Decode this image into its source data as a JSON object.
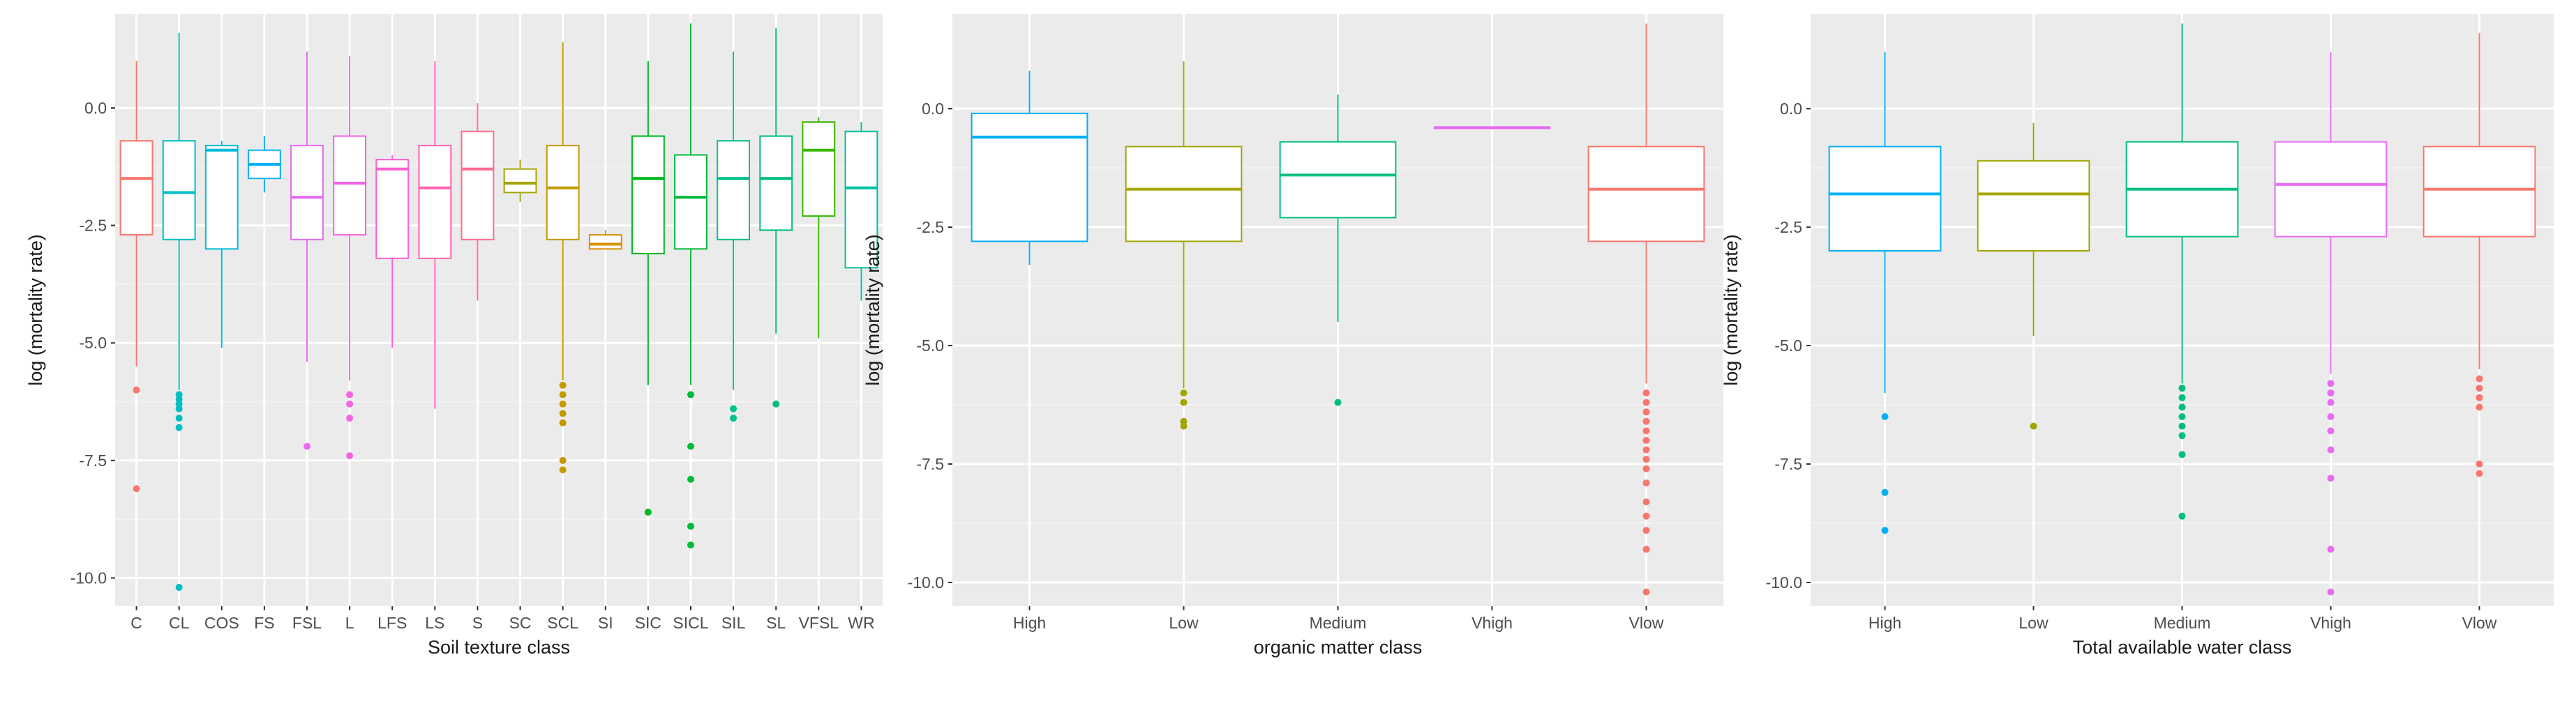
{
  "colors": {
    "panel_bg": "#EBEBEB",
    "grid_major": "#FFFFFF",
    "grid_minor": "#F4F4F4",
    "tick_text": "#4D4D4D",
    "axis_title": "#1A1A1A"
  },
  "chart_data": [
    {
      "type": "boxplot",
      "xlabel": "Soil texture class",
      "ylabel": "log (mortality rate)",
      "ylim": [
        -10.6,
        2.0
      ],
      "yticks": [
        0.0,
        -2.5,
        -5.0,
        -7.5,
        -10.0
      ],
      "ytick_labels": [
        "0.0",
        "-2.5",
        "-5.0",
        "-7.5",
        "-10.0"
      ],
      "grid": true,
      "legend": "none",
      "categories": [
        "C",
        "CL",
        "COS",
        "FS",
        "FSL",
        "L",
        "LFS",
        "LS",
        "S",
        "SC",
        "SCL",
        "SI",
        "SIC",
        "SICL",
        "SIL",
        "SL",
        "VFSL",
        "WR"
      ],
      "colors": [
        "#F8766D",
        "#00BFC4",
        "#00BCD8",
        "#00B0F6",
        "#E76BF3",
        "#F564E3",
        "#FD61D1",
        "#FF64B0",
        "#FF6C91",
        "#A3A500",
        "#C49A00",
        "#D89000",
        "#00B81F",
        "#00BA38",
        "#00C08B",
        "#00BF7D",
        "#39B600",
        "#00C19F"
      ],
      "boxes": [
        {
          "whisker_low": -5.5,
          "q1": -2.7,
          "median": -1.5,
          "q3": -0.7,
          "whisker_high": 1.0,
          "outliers": [
            -6.0,
            -8.1
          ]
        },
        {
          "whisker_low": -6.0,
          "q1": -2.8,
          "median": -1.8,
          "q3": -0.7,
          "whisker_high": 1.6,
          "outliers": [
            -6.1,
            -6.2,
            -6.3,
            -6.4,
            -6.6,
            -6.8,
            -10.2
          ]
        },
        {
          "whisker_low": -5.1,
          "q1": -3.0,
          "median": -0.9,
          "q3": -0.8,
          "whisker_high": -0.7,
          "outliers": []
        },
        {
          "whisker_low": -1.8,
          "q1": -1.5,
          "median": -1.2,
          "q3": -0.9,
          "whisker_high": -0.6,
          "outliers": []
        },
        {
          "whisker_low": -5.4,
          "q1": -2.8,
          "median": -1.9,
          "q3": -0.8,
          "whisker_high": 1.2,
          "outliers": [
            -7.2
          ]
        },
        {
          "whisker_low": -5.8,
          "q1": -2.7,
          "median": -1.6,
          "q3": -0.6,
          "whisker_high": 1.1,
          "outliers": [
            -6.1,
            -6.3,
            -6.6,
            -7.4
          ]
        },
        {
          "whisker_low": -5.1,
          "q1": -3.2,
          "median": -1.3,
          "q3": -1.1,
          "whisker_high": -1.0,
          "outliers": []
        },
        {
          "whisker_low": -6.4,
          "q1": -3.2,
          "median": -1.7,
          "q3": -0.8,
          "whisker_high": 1.0,
          "outliers": []
        },
        {
          "whisker_low": -4.1,
          "q1": -2.8,
          "median": -1.3,
          "q3": -0.5,
          "whisker_high": 0.1,
          "outliers": []
        },
        {
          "whisker_low": -2.0,
          "q1": -1.8,
          "median": -1.6,
          "q3": -1.3,
          "whisker_high": -1.1,
          "outliers": []
        },
        {
          "whisker_low": -5.8,
          "q1": -2.8,
          "median": -1.7,
          "q3": -0.8,
          "whisker_high": 1.4,
          "outliers": [
            -5.9,
            -6.1,
            -6.3,
            -6.5,
            -6.7,
            -7.5,
            -7.7
          ]
        },
        {
          "whisker_low": -3.0,
          "q1": -3.0,
          "median": -2.9,
          "q3": -2.7,
          "whisker_high": -2.6,
          "outliers": []
        },
        {
          "whisker_low": -5.9,
          "q1": -3.1,
          "median": -1.5,
          "q3": -0.6,
          "whisker_high": 1.0,
          "outliers": [
            -8.6
          ]
        },
        {
          "whisker_low": -5.9,
          "q1": -3.0,
          "median": -1.9,
          "q3": -1.0,
          "whisker_high": 1.8,
          "outliers": [
            -6.1,
            -7.2,
            -7.9,
            -8.9,
            -9.3
          ]
        },
        {
          "whisker_low": -6.0,
          "q1": -2.8,
          "median": -1.5,
          "q3": -0.7,
          "whisker_high": 1.2,
          "outliers": [
            -6.4,
            -6.6
          ]
        },
        {
          "whisker_low": -4.8,
          "q1": -2.6,
          "median": -1.5,
          "q3": -0.6,
          "whisker_high": 1.7,
          "outliers": [
            -6.3
          ]
        },
        {
          "whisker_low": -4.9,
          "q1": -2.3,
          "median": -0.9,
          "q3": -0.3,
          "whisker_high": -0.2,
          "outliers": []
        },
        {
          "whisker_low": -4.1,
          "q1": -3.4,
          "median": -1.7,
          "q3": -0.5,
          "whisker_high": -0.3,
          "outliers": []
        }
      ]
    },
    {
      "type": "boxplot",
      "xlabel": "organic matter class",
      "ylabel": "log (mortality rate)",
      "ylim": [
        -10.5,
        2.0
      ],
      "yticks": [
        0.0,
        -2.5,
        -5.0,
        -7.5,
        -10.0
      ],
      "ytick_labels": [
        "0.0",
        "-2.5",
        "-5.0",
        "-7.5",
        "-10.0"
      ],
      "grid": true,
      "legend": "none",
      "categories": [
        "High",
        "Low",
        "Medium",
        "Vhigh",
        "Vlow"
      ],
      "colors": [
        "#00B0F6",
        "#A3A500",
        "#00BF7D",
        "#E76BF3",
        "#F8766D"
      ],
      "boxes": [
        {
          "whisker_low": -3.3,
          "q1": -2.8,
          "median": -0.6,
          "q3": -0.1,
          "whisker_high": 0.8,
          "outliers": []
        },
        {
          "whisker_low": -5.9,
          "q1": -2.8,
          "median": -1.7,
          "q3": -0.8,
          "whisker_high": 1.0,
          "outliers": [
            -6.0,
            -6.2,
            -6.6,
            -6.7
          ]
        },
        {
          "whisker_low": -4.5,
          "q1": -2.3,
          "median": -1.4,
          "q3": -0.7,
          "whisker_high": 0.3,
          "outliers": [
            -6.2
          ]
        },
        {
          "whisker_low": -0.4,
          "q1": -0.4,
          "median": -0.4,
          "q3": -0.4,
          "whisker_high": -0.4,
          "outliers": []
        },
        {
          "whisker_low": -5.8,
          "q1": -2.8,
          "median": -1.7,
          "q3": -0.8,
          "whisker_high": 1.8,
          "outliers": [
            -6.0,
            -6.2,
            -6.4,
            -6.6,
            -6.8,
            -7.0,
            -7.2,
            -7.4,
            -7.6,
            -7.9,
            -8.3,
            -8.6,
            -8.9,
            -9.3,
            -10.2
          ]
        }
      ]
    },
    {
      "type": "boxplot",
      "xlabel": "Total available water class",
      "ylabel": "log (mortality rate)",
      "ylim": [
        -10.5,
        2.0
      ],
      "yticks": [
        0.0,
        -2.5,
        -5.0,
        -7.5,
        -10.0
      ],
      "ytick_labels": [
        "0.0",
        "-2.5",
        "-5.0",
        "-7.5",
        "-10.0"
      ],
      "grid": true,
      "legend": "none",
      "categories": [
        "High",
        "Low",
        "Medium",
        "Vhigh",
        "Vlow"
      ],
      "colors": [
        "#00B0F6",
        "#A3A500",
        "#00BF7D",
        "#E76BF3",
        "#F8766D"
      ],
      "boxes": [
        {
          "whisker_low": -6.0,
          "q1": -3.0,
          "median": -1.8,
          "q3": -0.8,
          "whisker_high": 1.2,
          "outliers": [
            -6.5,
            -8.1,
            -8.9
          ]
        },
        {
          "whisker_low": -4.8,
          "q1": -3.0,
          "median": -1.8,
          "q3": -1.1,
          "whisker_high": -0.3,
          "outliers": [
            -6.7
          ]
        },
        {
          "whisker_low": -5.8,
          "q1": -2.7,
          "median": -1.7,
          "q3": -0.7,
          "whisker_high": 1.8,
          "outliers": [
            -5.9,
            -6.1,
            -6.3,
            -6.5,
            -6.7,
            -6.9,
            -7.3,
            -8.6
          ]
        },
        {
          "whisker_low": -5.6,
          "q1": -2.7,
          "median": -1.6,
          "q3": -0.7,
          "whisker_high": 1.2,
          "outliers": [
            -5.8,
            -6.0,
            -6.2,
            -6.5,
            -6.8,
            -7.2,
            -7.8,
            -9.3,
            -10.2
          ]
        },
        {
          "whisker_low": -5.5,
          "q1": -2.7,
          "median": -1.7,
          "q3": -0.8,
          "whisker_high": 1.6,
          "outliers": [
            -5.7,
            -5.9,
            -6.1,
            -6.3,
            -7.5,
            -7.7
          ]
        }
      ]
    }
  ]
}
